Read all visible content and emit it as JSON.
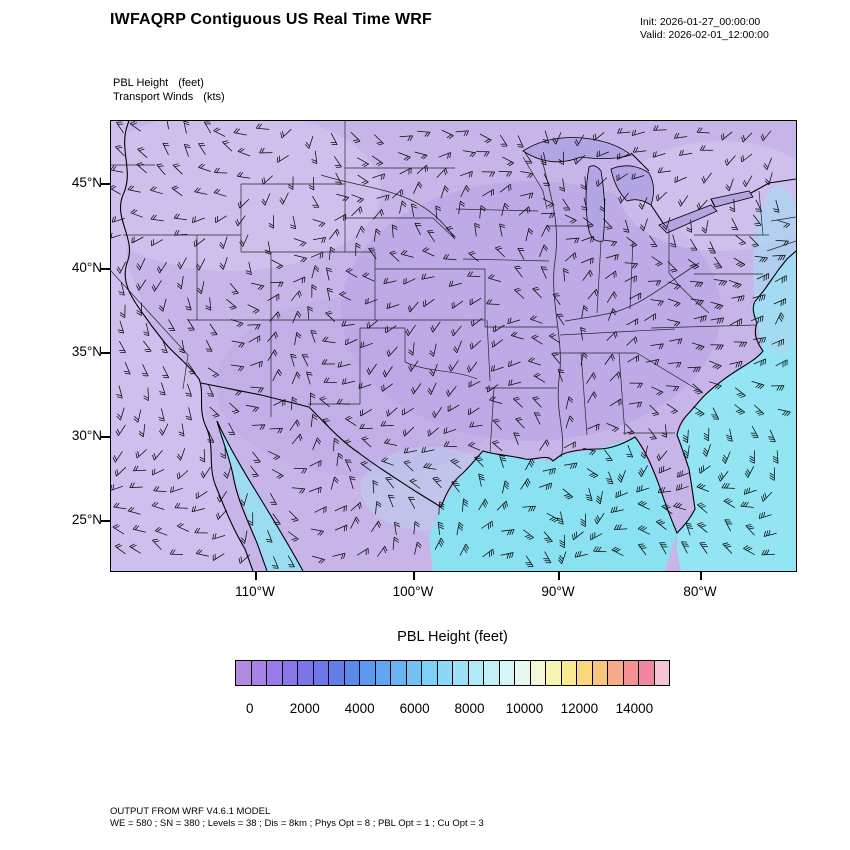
{
  "header": {
    "title": "IWFAQRP Contiguous US Real Time WRF",
    "init_line": "Init: 2026-01-27_00:00:00",
    "valid_line": "Valid: 2026-02-01_12:00:00"
  },
  "field_labels": {
    "line1_name": "PBL Height",
    "line1_unit": "(feet)",
    "line2_name": "Transport Winds",
    "line2_unit": "(kts)"
  },
  "map": {
    "ytick_labels": [
      "45°N",
      "40°N",
      "35°N",
      "30°N",
      "25°N"
    ],
    "xtick_labels": [
      "110°W",
      "100°W",
      "90°W",
      "80°W"
    ]
  },
  "colorbar": {
    "title": "PBL Height  (feet)",
    "tick_labels": [
      "0",
      "2000",
      "4000",
      "6000",
      "8000",
      "10000",
      "12000",
      "14000"
    ],
    "colors": [
      "#b38ae0",
      "#a681e6",
      "#987ae8",
      "#8a76e9",
      "#7c74e9",
      "#6e77e9",
      "#637ee9",
      "#5c8aec",
      "#5c98ee",
      "#60a6f0",
      "#68b4f2",
      "#72c2f4",
      "#7ecef5",
      "#8cd8f6",
      "#9ce2f7",
      "#aeeaf8",
      "#c2f0f8",
      "#d6f5f6",
      "#e8f8ee",
      "#f4f8d8",
      "#f8f4b6",
      "#f9ea92",
      "#f9d87c",
      "#f9c47e",
      "#f8ab88",
      "#f59394",
      "#ef86a2",
      "#f6c3d2"
    ]
  },
  "footer": {
    "line1": "OUTPUT FROM WRF V4.6.1 MODEL",
    "line2": "WE = 580 ; SN = 380 ; Levels = 38 ; Dis = 8km ; Phys Opt = 8 ; PBL Opt = 1 ; Cu Opt = 3"
  },
  "chart_data": {
    "type": "heatmap",
    "subtype": "geographic filled-contour map with wind-barb overlay",
    "title": "PBL Height (feet), Transport Winds (kts)",
    "region": "Contiguous United States",
    "model": "WRF V4.6.1",
    "init_time": "2026-01-27_00:00:00",
    "valid_time": "2026-02-01_12:00:00",
    "x_axis": {
      "label": "longitude",
      "tick_labels": [
        "110°W",
        "100°W",
        "90°W",
        "80°W"
      ]
    },
    "y_axis": {
      "label": "latitude",
      "tick_labels": [
        "45°N",
        "40°N",
        "35°N",
        "30°N",
        "25°N"
      ]
    },
    "colorbar": {
      "title": "PBL Height (feet)",
      "orientation": "horizontal",
      "tick_values": [
        0,
        2000,
        4000,
        6000,
        8000,
        10000,
        12000,
        14000
      ],
      "n_cells": 28
    },
    "qualitative_field": [
      {
        "area": "CONUS interior land",
        "pbl_height_ft": "0-2000 (purple shades)"
      },
      {
        "area": "Gulf of Mexico",
        "pbl_height_ft": "3000-6000 (cyan shades)"
      },
      {
        "area": "western Atlantic off East Coast",
        "pbl_height_ft": "3000-6000 (cyan shades)"
      },
      {
        "area": "Gulf of California",
        "pbl_height_ft": "2000-4000 (light blue)"
      }
    ],
    "wind_overlay": {
      "type": "barbs",
      "units": "kts",
      "coverage": "full domain, dense grid"
    },
    "grid_info": {
      "WE": 580,
      "SN": 380,
      "Levels": 38,
      "Dis": "8km",
      "Phys Opt": 8,
      "PBL Opt": 1,
      "Cu Opt": 3
    }
  }
}
